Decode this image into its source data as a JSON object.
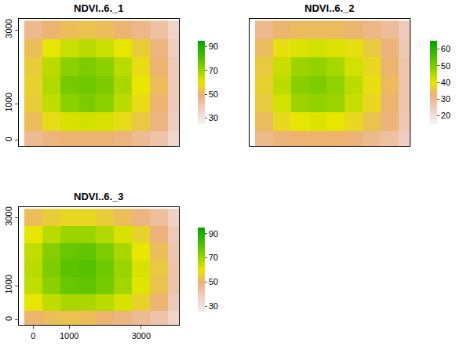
{
  "chart_data": [
    {
      "type": "heatmap",
      "title": "NDVI..6._1",
      "x": [
        0,
        500,
        1000,
        1500,
        2000,
        2500,
        3000,
        3500,
        4000
      ],
      "y": [
        0,
        500,
        1000,
        1500,
        2000,
        2500,
        3000
      ],
      "z": [
        [
          45,
          48,
          50,
          50,
          50,
          48,
          45,
          42,
          35
        ],
        [
          52,
          58,
          62,
          63,
          62,
          58,
          54,
          48,
          38
        ],
        [
          55,
          65,
          72,
          74,
          72,
          66,
          58,
          50,
          40
        ],
        [
          56,
          67,
          75,
          76,
          74,
          68,
          60,
          52,
          40
        ],
        [
          55,
          66,
          72,
          74,
          72,
          66,
          58,
          50,
          40
        ],
        [
          52,
          60,
          64,
          66,
          64,
          60,
          55,
          48,
          38
        ],
        [
          46,
          50,
          52,
          53,
          52,
          50,
          47,
          43,
          36
        ]
      ],
      "xlim": [
        -400,
        4050
      ],
      "ylim": [
        -150,
        3300
      ],
      "yticks": [
        0,
        1000,
        3000
      ],
      "zlim": [
        25,
        95
      ],
      "zticks": [
        30,
        50,
        70,
        90
      ],
      "tick_labels": "y"
    },
    {
      "type": "heatmap",
      "title": "NDVI..6._2",
      "x": [
        0,
        500,
        1000,
        1500,
        2000,
        2500,
        3000,
        3500,
        4000
      ],
      "y": [
        0,
        500,
        1000,
        1500,
        2000,
        2500,
        3000
      ],
      "z": [
        [
          30,
          32,
          33,
          33,
          33,
          32,
          30,
          28,
          24
        ],
        [
          34,
          38,
          40,
          41,
          40,
          38,
          35,
          32,
          26
        ],
        [
          36,
          42,
          47,
          48,
          47,
          43,
          38,
          33,
          27
        ],
        [
          37,
          44,
          49,
          50,
          48,
          44,
          39,
          34,
          27
        ],
        [
          36,
          43,
          47,
          48,
          46,
          42,
          38,
          33,
          27
        ],
        [
          34,
          39,
          41,
          42,
          41,
          39,
          36,
          32,
          26
        ],
        [
          30,
          33,
          34,
          34,
          34,
          33,
          31,
          29,
          25
        ]
      ],
      "xlim": [
        -400,
        4050
      ],
      "ylim": [
        -150,
        3300
      ],
      "zlim": [
        15,
        65
      ],
      "zticks": [
        20,
        30,
        40,
        50,
        60
      ],
      "tick_labels": false
    },
    {
      "type": "heatmap",
      "title": "NDVI..6._3",
      "x": [
        0,
        500,
        1000,
        1500,
        2000,
        2500,
        3000,
        3500,
        4000
      ],
      "y": [
        0,
        500,
        1000,
        1500,
        2000,
        2500,
        3000
      ],
      "z": [
        [
          50,
          52,
          53,
          52,
          50,
          48,
          45,
          42,
          36
        ],
        [
          60,
          65,
          68,
          68,
          66,
          62,
          56,
          50,
          40
        ],
        [
          65,
          72,
          77,
          78,
          75,
          69,
          61,
          53,
          42
        ],
        [
          66,
          74,
          79,
          80,
          76,
          70,
          62,
          54,
          42
        ],
        [
          65,
          73,
          77,
          78,
          74,
          68,
          60,
          52,
          41
        ],
        [
          60,
          66,
          70,
          70,
          67,
          62,
          56,
          49,
          40
        ],
        [
          52,
          55,
          57,
          57,
          55,
          52,
          48,
          44,
          37
        ]
      ],
      "xlim": [
        -400,
        4050
      ],
      "ylim": [
        -150,
        3300
      ],
      "xticks": [
        0,
        1000,
        3000
      ],
      "yticks": [
        0,
        1000,
        3000
      ],
      "zlim": [
        25,
        95
      ],
      "zticks": [
        30,
        50,
        70,
        90
      ]
    }
  ]
}
